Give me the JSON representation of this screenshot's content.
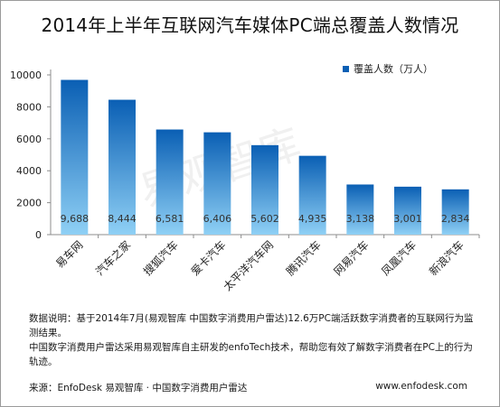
{
  "title": "2014年上半年互联网汽车媒体PC端总覆盖人数情况",
  "watermark_text": "易观智库",
  "chart_data": {
    "type": "bar",
    "categories": [
      "易车网",
      "汽车之家",
      "搜狐汽车",
      "爱卡汽车",
      "太平洋汽车网",
      "腾讯汽车",
      "网易汽车",
      "凤凰汽车",
      "新浪汽车"
    ],
    "series": [
      {
        "name": "覆盖人数（万人）",
        "values": [
          9688,
          8444,
          6581,
          6406,
          5602,
          4935,
          3138,
          3001,
          2834
        ]
      }
    ],
    "data_labels": [
      "9,688",
      "8,444",
      "6,581",
      "6,406",
      "5,602",
      "4,935",
      "3,138",
      "3,001",
      "2,834"
    ],
    "y_ticks": [
      0,
      2000,
      4000,
      6000,
      8000,
      10000
    ],
    "ylim": [
      0,
      10000
    ],
    "grid": false,
    "legend_position": "top-right",
    "bar_color_top": "#0a5fb4",
    "bar_color_bottom": "#8fd0f5"
  },
  "note": {
    "line1": "数据说明：基于2014年7月(易观智库 中国数字消费用户雷达)12.6万PC端活跃数字消费者的互联网行为监测结果。",
    "line2": "中国数字消费用户雷达采用易观智库自主研发的enfoTech技术，帮助您有效了解数字消费者在PC上的行为轨迹。"
  },
  "footer": {
    "source": "来源：EnfoDesk 易观智库 · 中国数字消费用户雷达",
    "site": "www.enfodesk.com"
  }
}
